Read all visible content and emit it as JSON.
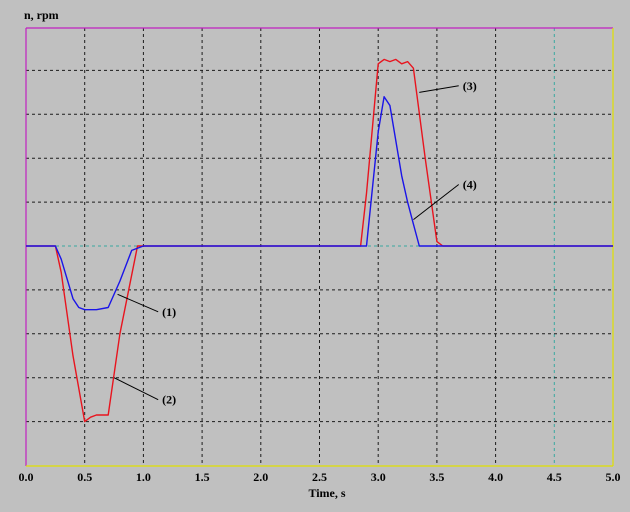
{
  "chart_data": {
    "type": "line",
    "ylabel": "n, rpm",
    "xlabel": "Time, s",
    "x_ticks": [
      "0.0",
      "0.5",
      "1.0",
      "1.5",
      "2.0",
      "2.5",
      "3.0",
      "3.5",
      "4.0",
      "4.5",
      "5.0"
    ],
    "xlim": [
      0,
      5
    ],
    "grid": true,
    "series": [
      {
        "color": "#e8141e",
        "x": [
          0.0,
          0.25,
          0.3,
          0.4,
          0.5,
          0.55,
          0.6,
          0.7,
          0.8,
          0.95,
          1.0,
          1.5,
          2.0,
          2.5,
          2.85,
          2.9,
          3.0,
          3.05,
          3.1,
          3.15,
          3.2,
          3.25,
          3.3,
          3.4,
          3.5,
          3.55,
          4.0,
          4.5,
          5.0
        ],
        "y": [
          0.0,
          0.0,
          -0.6,
          -2.5,
          -4.0,
          -3.9,
          -3.85,
          -3.85,
          -2.0,
          0.0,
          0.0,
          0.0,
          0.0,
          0.0,
          0.0,
          1.2,
          4.15,
          4.25,
          4.2,
          4.25,
          4.15,
          4.2,
          4.05,
          2.0,
          0.1,
          0.0,
          0.0,
          0.0,
          0.0
        ]
      },
      {
        "color": "#1a14e8",
        "x": [
          0.0,
          0.25,
          0.3,
          0.4,
          0.45,
          0.5,
          0.55,
          0.6,
          0.7,
          0.8,
          0.9,
          1.0,
          1.5,
          2.0,
          2.5,
          2.9,
          3.0,
          3.05,
          3.1,
          3.15,
          3.2,
          3.25,
          3.3,
          3.35,
          3.5,
          4.0,
          4.5,
          5.0
        ],
        "y": [
          0.0,
          0.0,
          -0.3,
          -1.2,
          -1.4,
          -1.45,
          -1.45,
          -1.45,
          -1.4,
          -0.8,
          -0.1,
          0.0,
          0.0,
          0.0,
          0.0,
          0.0,
          2.6,
          3.4,
          3.2,
          2.4,
          1.6,
          1.0,
          0.5,
          0.0,
          0.0,
          0.0,
          0.0,
          0.0
        ]
      }
    ],
    "annotations": [
      {
        "label": "(1)",
        "x": 0.78,
        "y": -1.1,
        "tx": 1.16,
        "ty": -1.5
      },
      {
        "label": "(2)",
        "x": 0.75,
        "y": -3.0,
        "tx": 1.16,
        "ty": -3.5
      },
      {
        "label": "(3)",
        "x": 3.35,
        "y": 3.5,
        "tx": 3.72,
        "ty": 3.65
      },
      {
        "label": "(4)",
        "x": 3.3,
        "y": 0.6,
        "tx": 3.72,
        "ty": 1.4
      }
    ]
  }
}
